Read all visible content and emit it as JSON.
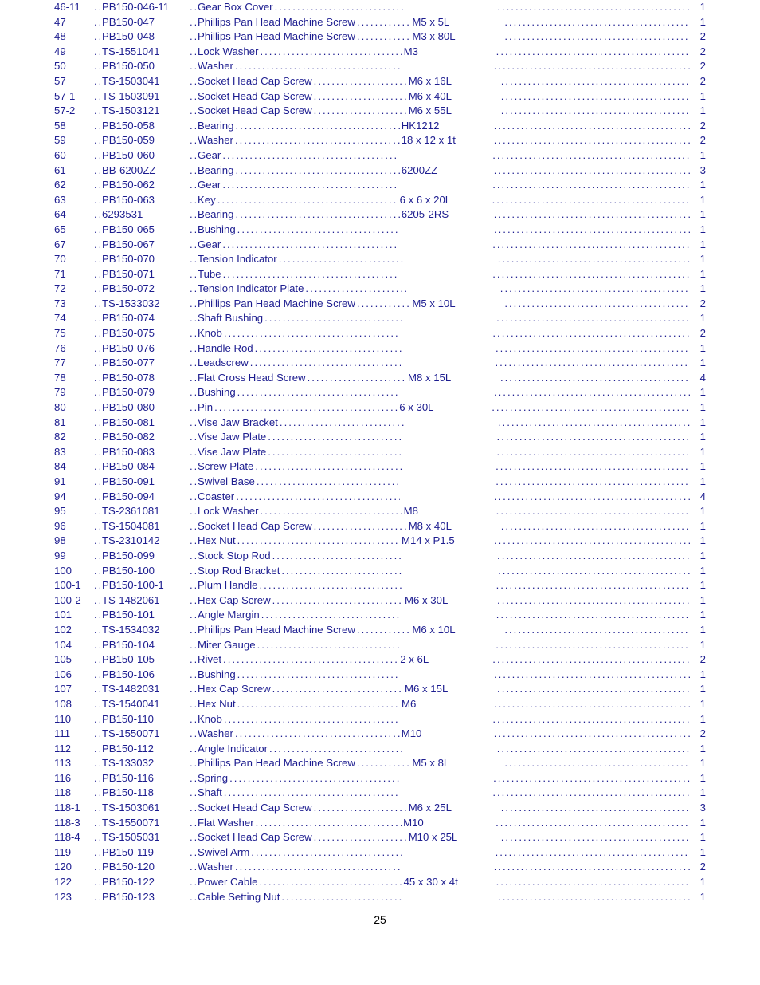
{
  "page_number": "25",
  "text_color": "#1d1d90",
  "parts": [
    {
      "index": "46-11",
      "stock": "PB150-046-11",
      "desc": "Gear Box Cover",
      "size": "",
      "qty": "1"
    },
    {
      "index": "47",
      "stock": "PB150-047",
      "desc": "Phillips Pan Head Machine Screw",
      "size": "M5 x 5L",
      "qty": "1"
    },
    {
      "index": "48",
      "stock": "PB150-048",
      "desc": "Phillips Pan Head Machine Screw",
      "size": "M3 x 80L",
      "qty": "2"
    },
    {
      "index": "49",
      "stock": "TS-1551041",
      "desc": "Lock Washer",
      "size": "M3",
      "qty": "2"
    },
    {
      "index": "50",
      "stock": "PB150-050",
      "desc": "Washer",
      "size": "",
      "qty": "2"
    },
    {
      "index": "57",
      "stock": "TS-1503041",
      "desc": "Socket Head Cap Screw",
      "size": "M6 x 16L",
      "qty": "2"
    },
    {
      "index": "57-1",
      "stock": "TS-1503091",
      "desc": "Socket Head Cap Screw",
      "size": "M6 x 40L",
      "qty": "1"
    },
    {
      "index": "57-2",
      "stock": "TS-1503121",
      "desc": "Socket Head Cap Screw",
      "size": "M6 x 55L",
      "qty": "1"
    },
    {
      "index": "58",
      "stock": "PB150-058",
      "desc": "Bearing",
      "size": "HK1212",
      "qty": "2"
    },
    {
      "index": "59",
      "stock": "PB150-059",
      "desc": "Washer",
      "size": "18 x 12 x 1t",
      "qty": "2"
    },
    {
      "index": "60",
      "stock": "PB150-060",
      "desc": "Gear",
      "size": "",
      "qty": "1"
    },
    {
      "index": "61",
      "stock": "BB-6200ZZ",
      "desc": "Bearing",
      "size": "6200ZZ",
      "qty": "3"
    },
    {
      "index": "62",
      "stock": "PB150-062",
      "desc": "Gear",
      "size": "",
      "qty": "1"
    },
    {
      "index": "63",
      "stock": "PB150-063",
      "desc": "Key",
      "size": "6 x 6 x 20L",
      "qty": "1"
    },
    {
      "index": "64",
      "stock": "6293531",
      "desc": "Bearing",
      "size": "6205-2RS",
      "qty": "1"
    },
    {
      "index": "65",
      "stock": "PB150-065",
      "desc": "Bushing",
      "size": "",
      "qty": "1"
    },
    {
      "index": "67",
      "stock": "PB150-067",
      "desc": "Gear",
      "size": "",
      "qty": "1"
    },
    {
      "index": "70",
      "stock": "PB150-070",
      "desc": "Tension Indicator",
      "size": "",
      "qty": "1"
    },
    {
      "index": "71",
      "stock": "PB150-071",
      "desc": "Tube",
      "size": "",
      "qty": "1"
    },
    {
      "index": "72",
      "stock": "PB150-072",
      "desc": "Tension Indicator Plate",
      "size": "",
      "qty": "1"
    },
    {
      "index": "73",
      "stock": "TS-1533032",
      "desc": "Phillips Pan Head Machine Screw",
      "size": "M5 x 10L",
      "qty": "2"
    },
    {
      "index": "74",
      "stock": "PB150-074",
      "desc": "Shaft Bushing",
      "size": "",
      "qty": "1"
    },
    {
      "index": "75",
      "stock": "PB150-075",
      "desc": "Knob",
      "size": "",
      "qty": "2"
    },
    {
      "index": "76",
      "stock": "PB150-076",
      "desc": "Handle Rod",
      "size": "",
      "qty": "1"
    },
    {
      "index": "77",
      "stock": "PB150-077",
      "desc": "Leadscrew",
      "size": "",
      "qty": "1"
    },
    {
      "index": "78",
      "stock": "PB150-078",
      "desc": "Flat Cross Head Screw",
      "size": "M8 x 15L",
      "qty": "4"
    },
    {
      "index": "79",
      "stock": "PB150-079",
      "desc": "Bushing",
      "size": "",
      "qty": "1"
    },
    {
      "index": "80",
      "stock": "PB150-080",
      "desc": "Pin",
      "size": "6 x 30L",
      "qty": "1"
    },
    {
      "index": "81",
      "stock": "PB150-081",
      "desc": "Vise Jaw Bracket",
      "size": "",
      "qty": "1"
    },
    {
      "index": "82",
      "stock": "PB150-082",
      "desc": "Vise Jaw Plate",
      "size": "",
      "qty": "1"
    },
    {
      "index": "83",
      "stock": "PB150-083",
      "desc": "Vise Jaw Plate",
      "size": "",
      "qty": "1"
    },
    {
      "index": "84",
      "stock": "PB150-084",
      "desc": "Screw Plate",
      "size": "",
      "qty": "1"
    },
    {
      "index": "91",
      "stock": "PB150-091",
      "desc": "Swivel Base",
      "size": "",
      "qty": "1"
    },
    {
      "index": "94",
      "stock": "PB150-094",
      "desc": "Coaster",
      "size": "",
      "qty": "4"
    },
    {
      "index": "95",
      "stock": "TS-2361081",
      "desc": "Lock Washer",
      "size": "M8",
      "qty": "1"
    },
    {
      "index": "96",
      "stock": "TS-1504081",
      "desc": "Socket Head Cap Screw",
      "size": "M8 x 40L",
      "qty": "1"
    },
    {
      "index": "98",
      "stock": "TS-2310142",
      "desc": "Hex Nut",
      "size": "M14 x P1.5",
      "qty": "1"
    },
    {
      "index": "99",
      "stock": "PB150-099",
      "desc": "Stock Stop Rod",
      "size": "",
      "qty": "1"
    },
    {
      "index": "100",
      "stock": "PB150-100",
      "desc": "Stop Rod Bracket",
      "size": "",
      "qty": "1"
    },
    {
      "index": "100-1",
      "stock": "PB150-100-1",
      "desc": "Plum Handle",
      "size": "",
      "qty": "1"
    },
    {
      "index": "100-2",
      "stock": "TS-1482061",
      "desc": "Hex Cap Screw",
      "size": "M6 x 30L",
      "qty": "1"
    },
    {
      "index": "101",
      "stock": "PB150-101",
      "desc": "Angle Margin",
      "size": "",
      "qty": "1"
    },
    {
      "index": "102",
      "stock": "TS-1534032",
      "desc": "Phillips Pan Head Machine Screw",
      "size": "M6 x 10L",
      "qty": "1"
    },
    {
      "index": "104",
      "stock": "PB150-104",
      "desc": "Miter Gauge",
      "size": "",
      "qty": "1"
    },
    {
      "index": "105",
      "stock": "PB150-105",
      "desc": "Rivet",
      "size": "2 x 6L",
      "qty": "2"
    },
    {
      "index": "106",
      "stock": "PB150-106",
      "desc": "Bushing",
      "size": "",
      "qty": "1"
    },
    {
      "index": "107",
      "stock": "TS-1482031",
      "desc": "Hex Cap Screw",
      "size": "M6 x 15L",
      "qty": "1"
    },
    {
      "index": "108",
      "stock": "TS-1540041",
      "desc": "Hex Nut",
      "size": "M6",
      "qty": "1"
    },
    {
      "index": "110",
      "stock": "PB150-110",
      "desc": "Knob",
      "size": "",
      "qty": "1"
    },
    {
      "index": "111",
      "stock": "TS-1550071",
      "desc": "Washer",
      "size": "M10",
      "qty": "2"
    },
    {
      "index": "112",
      "stock": "PB150-112",
      "desc": "Angle Indicator",
      "size": "",
      "qty": "1"
    },
    {
      "index": "113",
      "stock": "TS-133032",
      "desc": "Phillips Pan Head Machine Screw",
      "size": "M5 x 8L",
      "qty": "1"
    },
    {
      "index": "116",
      "stock": "PB150-116",
      "desc": "Spring",
      "size": "",
      "qty": "1"
    },
    {
      "index": "118",
      "stock": "PB150-118",
      "desc": "Shaft",
      "size": "",
      "qty": "1"
    },
    {
      "index": "118-1",
      "stock": "TS-1503061",
      "desc": "Socket Head Cap Screw",
      "size": "M6 x 25L",
      "qty": "3"
    },
    {
      "index": "118-3",
      "stock": "TS-1550071",
      "desc": "Flat Washer",
      "size": "M10",
      "qty": "1"
    },
    {
      "index": "118-4",
      "stock": "TS-1505031",
      "desc": "Socket Head Cap Screw",
      "size": "M10 x 25L",
      "qty": "1"
    },
    {
      "index": "119",
      "stock": "PB150-119",
      "desc": "Swivel Arm",
      "size": "",
      "qty": "1"
    },
    {
      "index": "120",
      "stock": "PB150-120",
      "desc": "Washer",
      "size": "",
      "qty": "2"
    },
    {
      "index": "122",
      "stock": "PB150-122",
      "desc": "Power Cable",
      "size": "45 x 30 x 4t",
      "qty": "1"
    },
    {
      "index": "123",
      "stock": "PB150-123",
      "desc": "Cable Setting Nut",
      "size": "",
      "qty": "1"
    }
  ]
}
